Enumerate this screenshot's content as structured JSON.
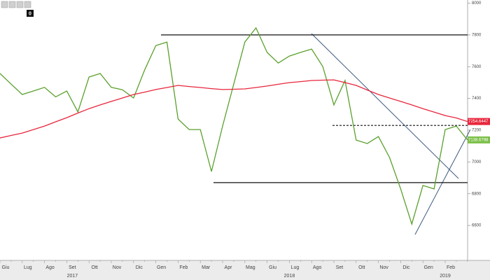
{
  "toolbar_badge": "0",
  "chart_data": {
    "type": "line",
    "categories": [
      "Giu",
      null,
      "Lug",
      null,
      "Ago",
      null,
      "Set",
      null,
      "Ott",
      null,
      "Nov",
      null,
      "Dic",
      null,
      "Gen",
      null,
      "Feb",
      null,
      "Mar",
      null,
      "Apr",
      null,
      "Mag",
      null,
      "Giu",
      null,
      "Lug",
      null,
      "Ago",
      null,
      "Set",
      null,
      "Ott",
      null,
      "Nov",
      null,
      "Dic",
      null,
      "Gen",
      null,
      "Feb",
      null,
      null
    ],
    "years": [
      "2017",
      "2018",
      "2019"
    ],
    "series": [
      {
        "color": "#5aa02c",
        "values": [
          7557,
          7490,
          7425,
          7447,
          7470,
          7410,
          7447,
          7315,
          7535,
          7557,
          7470,
          7455,
          7403,
          7580,
          7733,
          7755,
          7270,
          7204,
          7204,
          6940,
          7226,
          7490,
          7755,
          7844,
          7690,
          7623,
          7667,
          7690,
          7711,
          7601,
          7359,
          7513,
          7138,
          7116,
          7160,
          7028,
          6830,
          6609,
          6852,
          6830,
          7204,
          7226,
          7138.6798
        ],
        "last_label": "7138.6798",
        "label_color": "#7cc04a"
      },
      {
        "color": "#e8263c",
        "values": [
          7151,
          7167,
          7182,
          7204,
          7226,
          7253,
          7279,
          7308,
          7336,
          7359,
          7381,
          7403,
          7425,
          7440,
          7456,
          7469,
          7482,
          7475,
          7469,
          7462,
          7456,
          7458,
          7460,
          7469,
          7478,
          7489,
          7500,
          7506,
          7513,
          7515,
          7517,
          7500,
          7482,
          7453,
          7425,
          7403,
          7381,
          7359,
          7336,
          7314,
          7292,
          7277,
          7254.6447
        ],
        "last_label": "7254.6447",
        "label_color": "#e8263c"
      }
    ],
    "levels": [
      7800,
      6870,
      7230
    ],
    "ylim": [
      6380,
      8020
    ],
    "yticks": [
      6600,
      6800,
      7000,
      7200,
      7400,
      7600,
      7800,
      8000
    ]
  }
}
